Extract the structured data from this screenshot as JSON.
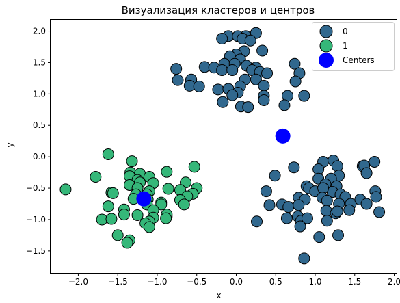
{
  "chart_data": {
    "type": "scatter",
    "title": "Визуализация кластеров и центров",
    "xlabel": "x",
    "ylabel": "y",
    "xlim": [
      -2.35,
      2.03
    ],
    "ylim": [
      -1.85,
      2.18
    ],
    "xticks": [
      -2.0,
      -1.5,
      -1.0,
      -0.5,
      0.0,
      0.5,
      1.0,
      1.5,
      2.0
    ],
    "xtick_labels": [
      "−2.0",
      "−1.5",
      "−1.0",
      "−0.5",
      "0.0",
      "0.5",
      "1.0",
      "1.5",
      "2.0"
    ],
    "yticks": [
      -1.5,
      -1.0,
      -0.5,
      0.0,
      0.5,
      1.0,
      1.5,
      2.0
    ],
    "ytick_labels": [
      "−1.5",
      "−1.0",
      "−0.5",
      "0.0",
      "0.5",
      "1.0",
      "1.5",
      "2.0"
    ],
    "grid": false,
    "legend_position": "top-right",
    "series": [
      {
        "name": "0",
        "color": "#31688e",
        "points": [
          [
            -0.1,
            1.92
          ],
          [
            0.02,
            1.92
          ],
          [
            0.12,
            1.92
          ],
          [
            0.25,
            1.97
          ],
          [
            -0.18,
            1.88
          ],
          [
            0.08,
            1.88
          ],
          [
            0.18,
            1.85
          ],
          [
            0.1,
            1.68
          ],
          [
            0.33,
            1.69
          ],
          [
            0.0,
            1.63
          ],
          [
            -0.08,
            1.6
          ],
          [
            0.05,
            1.55
          ],
          [
            -0.15,
            1.48
          ],
          [
            -0.02,
            1.48
          ],
          [
            0.13,
            1.45
          ],
          [
            0.25,
            1.42
          ],
          [
            -0.4,
            1.43
          ],
          [
            -0.28,
            1.42
          ],
          [
            -0.18,
            1.38
          ],
          [
            -0.05,
            1.38
          ],
          [
            0.2,
            1.38
          ],
          [
            0.3,
            1.35
          ],
          [
            0.39,
            1.33
          ],
          [
            0.74,
            1.48
          ],
          [
            0.8,
            1.33
          ],
          [
            0.75,
            1.2
          ],
          [
            -0.76,
            1.4
          ],
          [
            -0.74,
            1.22
          ],
          [
            -0.58,
            1.2
          ],
          [
            -0.57,
            1.23
          ],
          [
            -0.59,
            1.13
          ],
          [
            -0.47,
            1.12
          ],
          [
            0.11,
            1.23
          ],
          [
            0.25,
            1.23
          ],
          [
            0.05,
            1.12
          ],
          [
            0.35,
            1.13
          ],
          [
            -0.23,
            1.07
          ],
          [
            -0.1,
            1.08
          ],
          [
            0.02,
            1.02
          ],
          [
            0.35,
            0.97
          ],
          [
            0.65,
            0.97
          ],
          [
            0.86,
            0.97
          ],
          [
            -0.05,
            0.98
          ],
          [
            -0.17,
            0.87
          ],
          [
            0.06,
            0.8
          ],
          [
            0.15,
            0.79
          ],
          [
            0.35,
            0.9
          ],
          [
            0.61,
            0.82
          ],
          [
            0.73,
            -0.17
          ],
          [
            1.1,
            -0.08
          ],
          [
            1.23,
            -0.06
          ],
          [
            1.28,
            -0.15
          ],
          [
            1.04,
            -0.2
          ],
          [
            1.6,
            -0.15
          ],
          [
            1.75,
            -0.08
          ],
          [
            1.62,
            -0.14
          ],
          [
            1.65,
            -0.26
          ],
          [
            1.3,
            -0.3
          ],
          [
            0.49,
            -0.3
          ],
          [
            0.89,
            -0.47
          ],
          [
            1.04,
            -0.35
          ],
          [
            1.2,
            -0.35
          ],
          [
            1.13,
            -0.44
          ],
          [
            1.27,
            -0.47
          ],
          [
            0.38,
            -0.55
          ],
          [
            0.92,
            -0.5
          ],
          [
            1.22,
            -0.56
          ],
          [
            1.0,
            -0.55
          ],
          [
            1.32,
            -0.6
          ],
          [
            1.38,
            -0.64
          ],
          [
            1.1,
            -0.5
          ],
          [
            0.79,
            -0.65
          ],
          [
            0.87,
            -0.68
          ],
          [
            1.09,
            -0.65
          ],
          [
            1.15,
            -0.7
          ],
          [
            1.3,
            -0.75
          ],
          [
            1.45,
            -0.75
          ],
          [
            1.57,
            -0.68
          ],
          [
            1.65,
            -0.75
          ],
          [
            1.76,
            -0.55
          ],
          [
            1.77,
            -0.64
          ],
          [
            0.42,
            -0.77
          ],
          [
            0.58,
            -0.76
          ],
          [
            0.66,
            -0.8
          ],
          [
            0.79,
            -0.77
          ],
          [
            1.14,
            -0.86
          ],
          [
            1.26,
            -0.9
          ],
          [
            1.28,
            -0.87
          ],
          [
            1.43,
            -0.85
          ],
          [
            1.81,
            -0.88
          ],
          [
            0.64,
            -0.98
          ],
          [
            0.78,
            -0.95
          ],
          [
            0.82,
            -1.02
          ],
          [
            0.9,
            -0.98
          ],
          [
            1.15,
            -1.02
          ],
          [
            0.26,
            -1.03
          ],
          [
            0.81,
            -1.11
          ],
          [
            1.05,
            -1.28
          ],
          [
            1.29,
            -1.25
          ],
          [
            0.86,
            -1.62
          ]
        ]
      },
      {
        "name": "1",
        "color": "#35b779",
        "points": [
          [
            -1.62,
            0.04
          ],
          [
            -1.32,
            -0.07
          ],
          [
            -1.34,
            -0.25
          ],
          [
            -1.22,
            -0.27
          ],
          [
            -0.88,
            -0.24
          ],
          [
            -0.53,
            -0.16
          ],
          [
            -1.78,
            -0.32
          ],
          [
            -1.35,
            -0.31
          ],
          [
            -1.25,
            -0.37
          ],
          [
            -1.1,
            -0.32
          ],
          [
            -1.35,
            -0.45
          ],
          [
            -1.22,
            -0.41
          ],
          [
            -1.05,
            -0.42
          ],
          [
            -0.64,
            -0.41
          ],
          [
            -0.86,
            -0.51
          ],
          [
            -0.71,
            -0.53
          ],
          [
            -0.5,
            -0.5
          ],
          [
            -2.16,
            -0.52
          ],
          [
            -1.25,
            -0.5
          ],
          [
            -1.1,
            -0.55
          ],
          [
            -1.58,
            -0.57
          ],
          [
            -1.56,
            -0.58
          ],
          [
            -1.27,
            -0.6
          ],
          [
            -1.13,
            -0.6
          ],
          [
            -0.55,
            -0.59
          ],
          [
            -1.3,
            -0.67
          ],
          [
            -1.12,
            -0.68
          ],
          [
            -0.62,
            -0.63
          ],
          [
            -0.71,
            -0.69
          ],
          [
            -1.62,
            -0.79
          ],
          [
            -1.42,
            -0.84
          ],
          [
            -1.13,
            -0.76
          ],
          [
            -0.95,
            -0.73
          ],
          [
            -0.95,
            -0.76
          ],
          [
            -1.42,
            -0.92
          ],
          [
            -1.05,
            -0.85
          ],
          [
            -0.88,
            -0.95
          ],
          [
            -0.66,
            -0.76
          ],
          [
            -0.88,
            -0.92
          ],
          [
            -1.7,
            -1.0
          ],
          [
            -1.58,
            -0.99
          ],
          [
            -1.25,
            -0.93
          ],
          [
            -1.05,
            -0.97
          ],
          [
            -1.1,
            -1.03
          ],
          [
            -1.15,
            -1.06
          ],
          [
            -1.1,
            -1.12
          ],
          [
            -0.89,
            -0.98
          ],
          [
            -1.5,
            -1.25
          ],
          [
            -1.35,
            -1.33
          ],
          [
            -1.38,
            -1.37
          ]
        ]
      }
    ],
    "centers": {
      "name": "Centers",
      "color": "#0000ff",
      "points": [
        [
          0.59,
          0.33
        ],
        [
          -1.17,
          -0.67
        ]
      ]
    }
  }
}
